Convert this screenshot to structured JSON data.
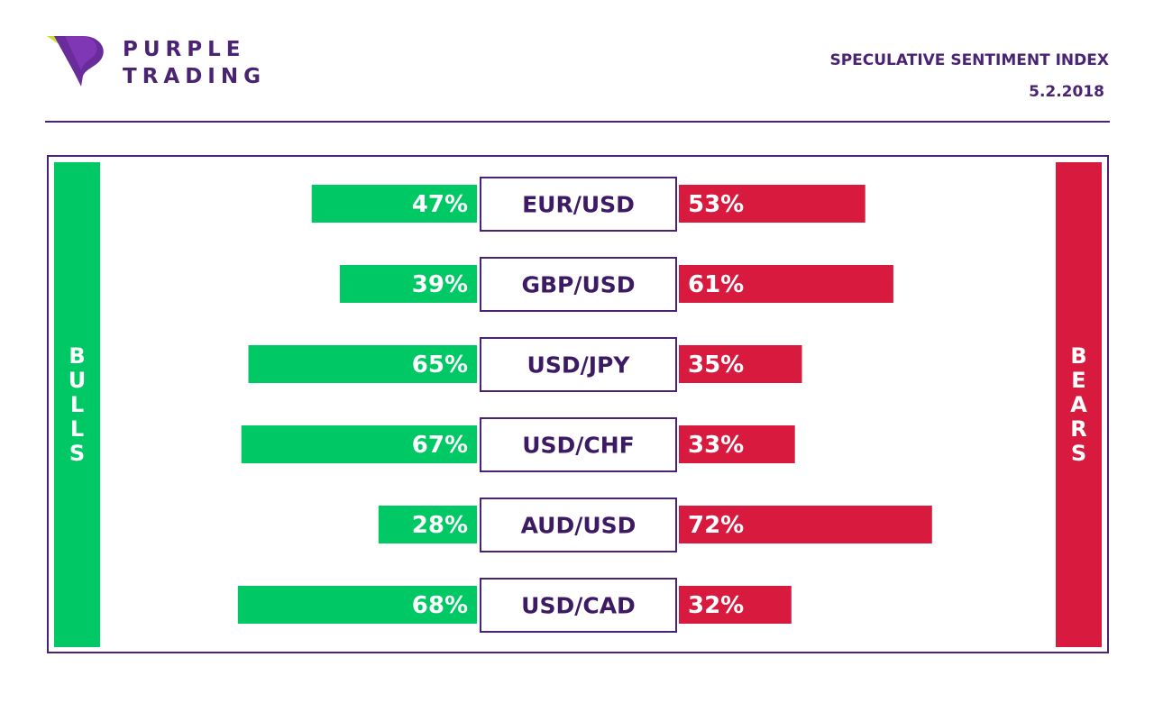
{
  "brand": {
    "line1": "PURPLE",
    "line2": "TRADING"
  },
  "header": {
    "title": "SPECULATIVE SENTIMENT INDEX",
    "date": "5.2.2018"
  },
  "colors": {
    "bulls": "#00c864",
    "bears": "#d81a3e",
    "accent": "#4a2472",
    "logo_yellow": "#c8dc28"
  },
  "chart_data": {
    "type": "bar",
    "orientation": "horizontal-diverging",
    "legend": {
      "bulls": "BULLS",
      "bears": "BEARS"
    },
    "categories": [
      "EUR/USD",
      "GBP/USD",
      "USD/JPY",
      "USD/CHF",
      "AUD/USD",
      "USD/CAD"
    ],
    "series": [
      {
        "name": "BULLS",
        "values": [
          47,
          39,
          65,
          67,
          28,
          68
        ]
      },
      {
        "name": "BEARS",
        "values": [
          53,
          61,
          35,
          33,
          72,
          32
        ]
      }
    ],
    "unit": "%"
  }
}
